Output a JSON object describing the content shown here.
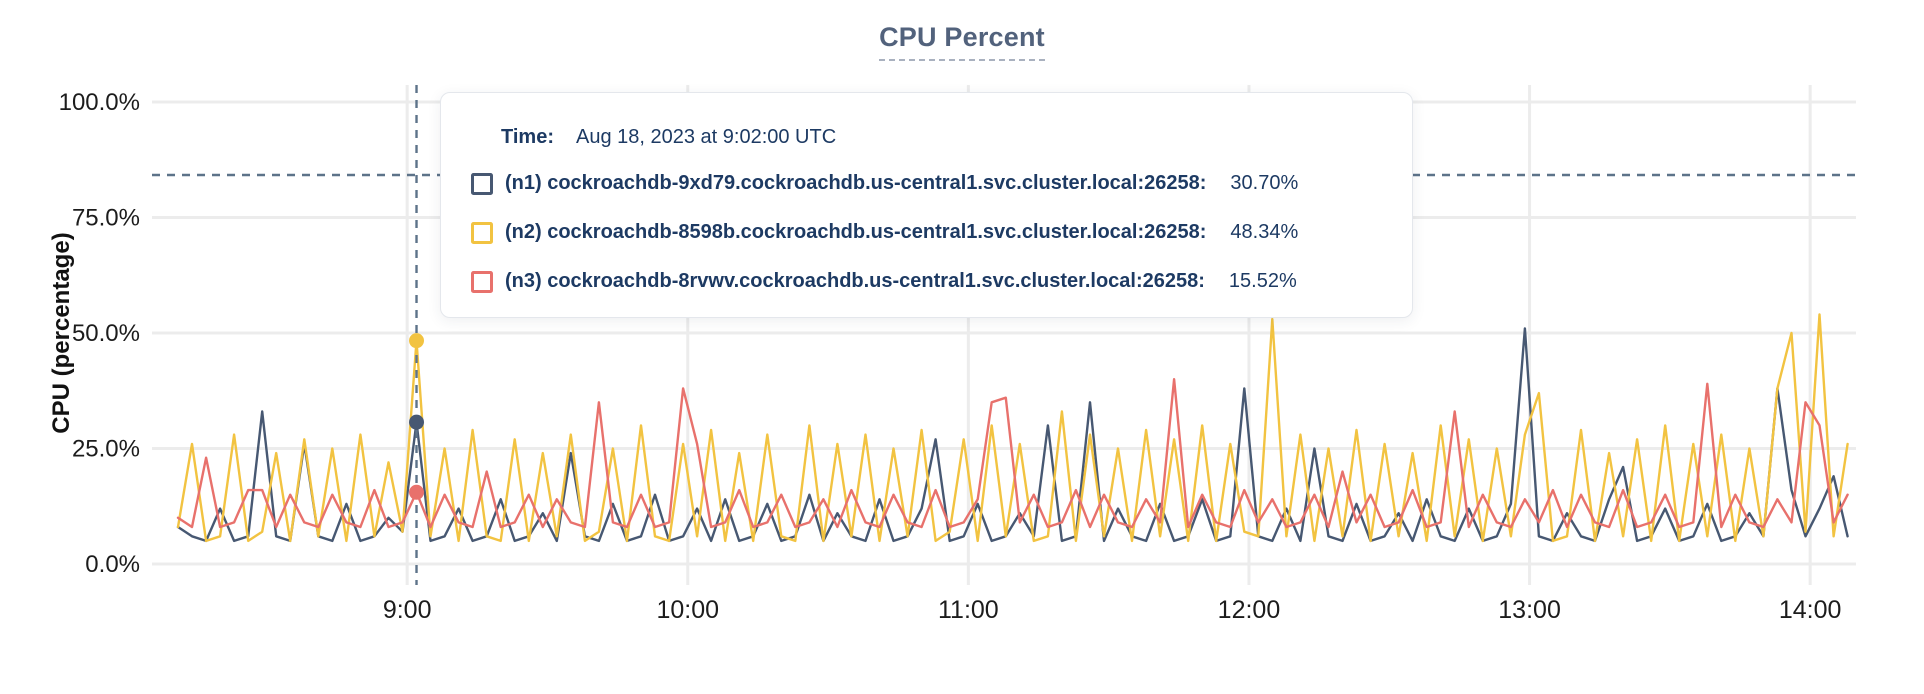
{
  "title": {
    "text": "CPU Percent"
  },
  "y_axis_title": "CPU (percentage)",
  "tooltip": {
    "time_label": "Time:",
    "time_value": "Aug 18, 2023 at 9:02:00 UTC",
    "rows": [
      {
        "label": "(n1) cockroachdb-9xd79.cockroachdb.us-central1.svc.cluster.local:26258:",
        "value": "30.70%",
        "color": "#475872"
      },
      {
        "label": "(n2) cockroachdb-8598b.cockroachdb.us-central1.svc.cluster.local:26258:",
        "value": "48.34%",
        "color": "#f2c341"
      },
      {
        "label": "(n3) cockroachdb-8rvwv.cockroachdb.us-central1.svc.cluster.local:26258:",
        "value": "15.52%",
        "color": "#e8716c"
      }
    ]
  },
  "colors": {
    "grid": "#ececec",
    "crosshair": "#5d7389",
    "axis_text": "#1c1c1c",
    "title_text": "#52627c",
    "tooltip_text": "#1d3a63"
  },
  "chart_data": {
    "type": "line",
    "title": "CPU Percent",
    "xlabel": "",
    "ylabel": "CPU (percentage)",
    "ylim": [
      0,
      100
    ],
    "grid": true,
    "legend_position": "tooltip-overlay",
    "x_unit": "minute-of-day",
    "x_start_min": 491,
    "x_step_min": 3,
    "x_ticks": [
      {
        "min": 540,
        "label": "9:00"
      },
      {
        "min": 600,
        "label": "10:00"
      },
      {
        "min": 660,
        "label": "11:00"
      },
      {
        "min": 720,
        "label": "12:00"
      },
      {
        "min": 780,
        "label": "13:00"
      },
      {
        "min": 840,
        "label": "14:00"
      }
    ],
    "y_ticks": [
      {
        "value": 0,
        "label": "0.0%"
      },
      {
        "value": 25,
        "label": "25.0%"
      },
      {
        "value": 50,
        "label": "50.0%"
      },
      {
        "value": 75,
        "label": "75.0%"
      },
      {
        "value": 100,
        "label": "100.0%"
      }
    ],
    "series": [
      {
        "id": "n1",
        "name": "(n1) cockroachdb-9xd79.cockroachdb.us-central1.svc.cluster.local:26258",
        "color": "#475872",
        "values": [
          8,
          6,
          5,
          12,
          5,
          6,
          33,
          6,
          5,
          26,
          6,
          5,
          13,
          5,
          6,
          10,
          7,
          30.7,
          5,
          6,
          12,
          5,
          6,
          14,
          5,
          6,
          11,
          5,
          24,
          6,
          5,
          13,
          5,
          6,
          15,
          5,
          6,
          12,
          5,
          14,
          5,
          6,
          13,
          5,
          6,
          15,
          5,
          11,
          6,
          5,
          14,
          5,
          6,
          12,
          27,
          5,
          6,
          13,
          5,
          6,
          11,
          6,
          30,
          5,
          6,
          35,
          5,
          12,
          6,
          5,
          13,
          5,
          6,
          14,
          5,
          6,
          38,
          6,
          5,
          12,
          5,
          25,
          6,
          5,
          13,
          5,
          6,
          11,
          5,
          14,
          6,
          5,
          12,
          5,
          6,
          13,
          51,
          6,
          5,
          11,
          6,
          5,
          14,
          21,
          5,
          6,
          12,
          5,
          6,
          13,
          5,
          6,
          11,
          6,
          38,
          16,
          6,
          12,
          19,
          6
        ]
      },
      {
        "id": "n2",
        "name": "(n2) cockroachdb-8598b.cockroachdb.us-central1.svc.cluster.local:26258",
        "color": "#f2c341",
        "values": [
          8,
          26,
          5,
          6,
          28,
          5,
          7,
          24,
          5,
          27,
          6,
          25,
          5,
          28,
          6,
          22,
          7,
          48.34,
          6,
          25,
          5,
          29,
          6,
          5,
          27,
          5,
          24,
          6,
          28,
          5,
          7,
          25,
          5,
          30,
          6,
          5,
          26,
          6,
          29,
          5,
          24,
          5,
          28,
          6,
          5,
          30,
          5,
          26,
          6,
          28,
          5,
          25,
          6,
          29,
          5,
          7,
          27,
          5,
          30,
          6,
          26,
          5,
          6,
          33,
          5,
          28,
          6,
          25,
          5,
          29,
          6,
          27,
          5,
          30,
          5,
          26,
          7,
          6,
          53,
          6,
          28,
          5,
          25,
          6,
          29,
          5,
          26,
          6,
          24,
          5,
          30,
          6,
          27,
          5,
          25,
          6,
          28,
          37,
          5,
          6,
          29,
          5,
          24,
          6,
          27,
          5,
          30,
          5,
          26,
          6,
          28,
          5,
          25,
          6,
          38,
          50,
          7,
          54,
          6,
          26
        ]
      },
      {
        "id": "n3",
        "name": "(n3) cockroachdb-8rvwv.cockroachdb.us-central1.svc.cluster.local:26258",
        "color": "#e8716c",
        "values": [
          10,
          8,
          23,
          8,
          9,
          16,
          16,
          8,
          15,
          9,
          8,
          15,
          9,
          8,
          16,
          8,
          9,
          15.52,
          8,
          15,
          9,
          8,
          20,
          8,
          9,
          15,
          8,
          14,
          9,
          8,
          35,
          9,
          8,
          15,
          8,
          9,
          38,
          26,
          8,
          9,
          16,
          8,
          9,
          15,
          8,
          9,
          14,
          8,
          16,
          9,
          8,
          15,
          9,
          8,
          16,
          8,
          9,
          14,
          35,
          36,
          9,
          15,
          8,
          9,
          16,
          8,
          15,
          9,
          8,
          14,
          9,
          40,
          8,
          15,
          9,
          8,
          16,
          9,
          14,
          8,
          9,
          15,
          8,
          20,
          9,
          15,
          8,
          9,
          16,
          8,
          9,
          33,
          8,
          15,
          9,
          8,
          14,
          9,
          16,
          8,
          15,
          9,
          8,
          16,
          8,
          9,
          15,
          8,
          9,
          39,
          8,
          15,
          9,
          8,
          14,
          9,
          35,
          30,
          9,
          15
        ]
      }
    ],
    "hover": {
      "minute": 542,
      "time_label": "Aug 18, 2023 at 9:02:00 UTC",
      "cursor_value_percent": 84.2,
      "points": [
        {
          "series": "n1",
          "value": 30.7
        },
        {
          "series": "n2",
          "value": 48.34
        },
        {
          "series": "n3",
          "value": 15.52
        }
      ]
    }
  }
}
